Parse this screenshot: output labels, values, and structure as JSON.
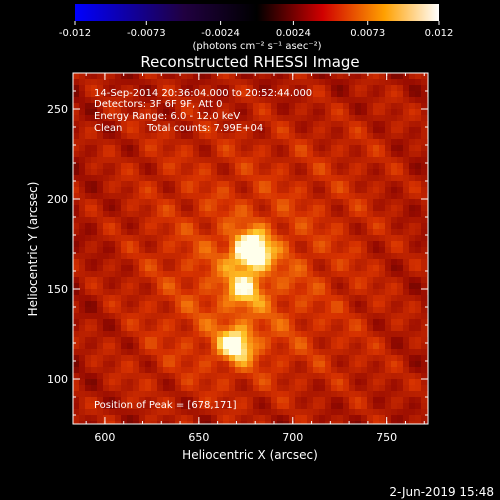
{
  "colorbar": {
    "ticks": [
      "-0.012",
      "-0.0073",
      "-0.0024",
      "0.0024",
      "0.0073",
      "0.012"
    ],
    "tick_values": [
      -0.012,
      -0.0073,
      -0.0024,
      0.0024,
      0.0073,
      0.012
    ],
    "unit_label": "(photons cm⁻² s⁻¹ asec⁻²)",
    "colors": [
      "#0000ff",
      "#000000",
      "#ff0000",
      "#ffff00",
      "#ffffff"
    ]
  },
  "chart_data": {
    "type": "heatmap",
    "title": "Reconstructed RHESSI Image",
    "xlabel": "Heliocentric X (arcsec)",
    "ylabel": "Heliocentric Y (arcsec)",
    "xlim": [
      583,
      772
    ],
    "ylim": [
      75,
      270
    ],
    "xticks": [
      600,
      650,
      700,
      750
    ],
    "yticks": [
      100,
      150,
      200,
      250
    ],
    "annotations": {
      "time_range": "14-Sep-2014 20:36:04.000 to 20:52:44.000",
      "detectors": "Detectors: 3F 6F 9F, Att 0",
      "energy": "Energy Range: 6.0 - 12.0 keV",
      "clean": "Clean",
      "counts": "Total counts: 7.99E+04",
      "peak": "Position of Peak = [678,171]"
    },
    "peak": [
      678,
      171
    ],
    "sources": [
      {
        "x": 678,
        "y": 171,
        "intensity": 1.0
      },
      {
        "x": 670,
        "y": 119,
        "intensity": 0.7
      },
      {
        "x": 674,
        "y": 150,
        "intensity": 0.45
      }
    ]
  },
  "footer": {
    "date": "2-Jun-2019 15:48"
  }
}
